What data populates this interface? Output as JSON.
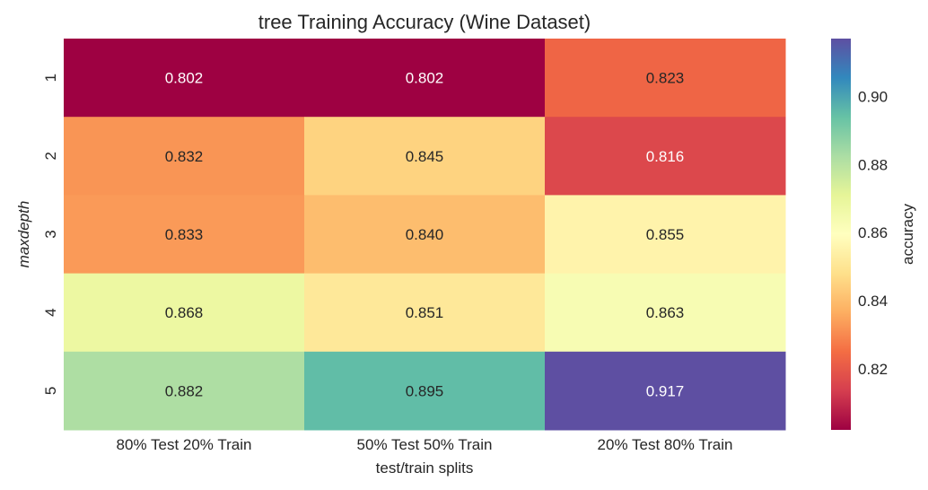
{
  "chart_data": {
    "type": "heatmap",
    "title": "tree Training Accuracy (Wine Dataset)",
    "xlabel": "test/train splits",
    "ylabel": "maxdepth",
    "x_categories": [
      "80% Test 20% Train",
      "50% Test 50% Train",
      "20% Test 80% Train"
    ],
    "y_categories": [
      "1",
      "2",
      "3",
      "4",
      "5"
    ],
    "values": [
      [
        0.802,
        0.802,
        0.823
      ],
      [
        0.832,
        0.845,
        0.816
      ],
      [
        0.833,
        0.84,
        0.855
      ],
      [
        0.868,
        0.851,
        0.863
      ],
      [
        0.882,
        0.895,
        0.917
      ]
    ],
    "cell_labels": [
      [
        "0.802",
        "0.802",
        "0.823"
      ],
      [
        "0.832",
        "0.845",
        "0.816"
      ],
      [
        "0.833",
        "0.840",
        "0.855"
      ],
      [
        "0.868",
        "0.851",
        "0.863"
      ],
      [
        "0.882",
        "0.895",
        "0.917"
      ]
    ],
    "colormap": "Spectral",
    "colorbar": {
      "label": "accuracy",
      "range": [
        0.802,
        0.917
      ],
      "ticks": [
        0.82,
        0.84,
        0.86,
        0.88,
        0.9
      ],
      "tick_labels": [
        "0.82",
        "0.84",
        "0.86",
        "0.88",
        "0.90"
      ]
    },
    "grid": false
  }
}
